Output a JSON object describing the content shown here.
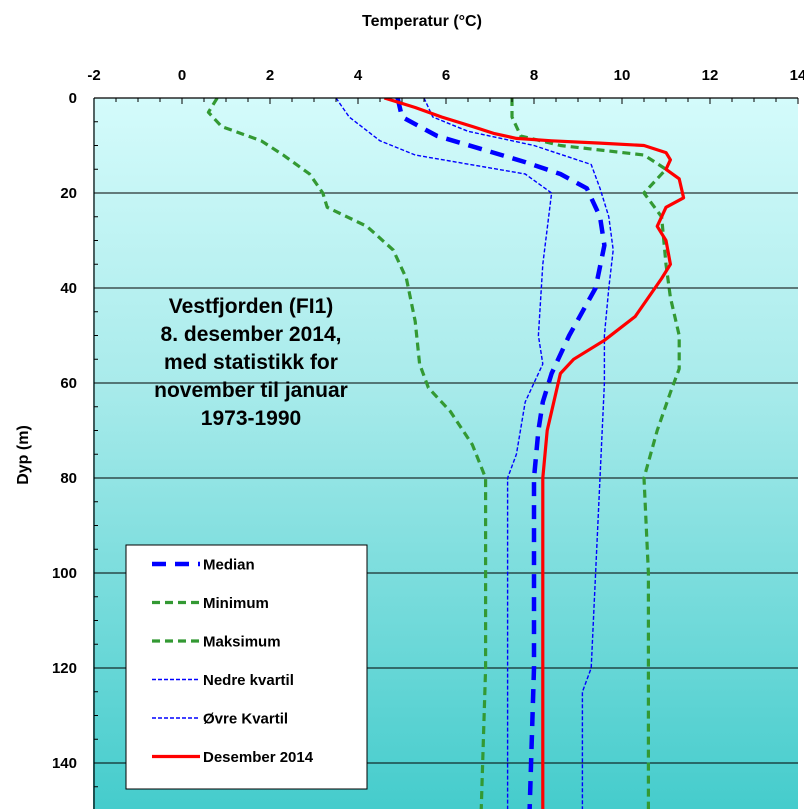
{
  "chart_data": {
    "type": "line",
    "xlabel": "Temperatur (°C)",
    "ylabel": "Dyp (m)",
    "xlim": [
      -2,
      14
    ],
    "ylim": [
      0,
      150
    ],
    "x_ticks": [
      -2,
      0,
      2,
      4,
      6,
      8,
      10,
      12,
      14
    ],
    "y_ticks": [
      0,
      20,
      40,
      60,
      80,
      100,
      120,
      140
    ],
    "y_axis_inverted": true,
    "x_axis_position": "top",
    "grid": "horizontal",
    "background": "gradient light cyan to teal",
    "legend_position": "bottom-left",
    "annotation": [
      "Vestfjorden (FI1)",
      "8. desember 2014,",
      "med statistikk for",
      "november til januar",
      "1973-1990"
    ],
    "series": [
      {
        "name": "Median",
        "color": "#0000FF",
        "style": "dashed-thick",
        "points": [
          [
            4.9,
            0
          ],
          [
            5.0,
            4
          ],
          [
            5.8,
            8
          ],
          [
            6.9,
            11
          ],
          [
            7.8,
            13.5
          ],
          [
            8.6,
            16
          ],
          [
            9.2,
            19
          ],
          [
            9.5,
            25
          ],
          [
            9.6,
            31
          ],
          [
            9.4,
            40
          ],
          [
            8.8,
            50
          ],
          [
            8.4,
            58
          ],
          [
            8.2,
            64
          ],
          [
            8.1,
            70
          ],
          [
            8.0,
            80
          ],
          [
            8.0,
            100
          ],
          [
            8.0,
            120
          ],
          [
            7.9,
            150
          ]
        ]
      },
      {
        "name": "Minimum",
        "color": "#339933",
        "style": "dashed",
        "points": [
          [
            0.8,
            0
          ],
          [
            0.6,
            3
          ],
          [
            0.9,
            6
          ],
          [
            1.8,
            9
          ],
          [
            2.3,
            12
          ],
          [
            2.9,
            16
          ],
          [
            3.2,
            20
          ],
          [
            3.3,
            23
          ],
          [
            4.2,
            27
          ],
          [
            4.8,
            32
          ],
          [
            5.1,
            38
          ],
          [
            5.3,
            47
          ],
          [
            5.4,
            56
          ],
          [
            5.6,
            61
          ],
          [
            6.1,
            66
          ],
          [
            6.6,
            73
          ],
          [
            6.9,
            80
          ],
          [
            6.9,
            100
          ],
          [
            6.9,
            120
          ],
          [
            6.8,
            150
          ]
        ]
      },
      {
        "name": "Maksimum",
        "color": "#339933",
        "style": "dashed",
        "points": [
          [
            7.5,
            0
          ],
          [
            7.5,
            4
          ],
          [
            7.7,
            8
          ],
          [
            8.6,
            10
          ],
          [
            10.5,
            12
          ],
          [
            11.0,
            15
          ],
          [
            10.5,
            20
          ],
          [
            10.9,
            25
          ],
          [
            11.0,
            35
          ],
          [
            11.1,
            42
          ],
          [
            11.3,
            50
          ],
          [
            11.3,
            57
          ],
          [
            11.1,
            62
          ],
          [
            10.8,
            70
          ],
          [
            10.5,
            80
          ],
          [
            10.6,
            100
          ],
          [
            10.6,
            120
          ],
          [
            10.6,
            150
          ]
        ]
      },
      {
        "name": "Nedre kvartil",
        "color": "#0000FF",
        "style": "dashed-thin",
        "points": [
          [
            3.5,
            0
          ],
          [
            3.8,
            4
          ],
          [
            4.5,
            9
          ],
          [
            5.3,
            12
          ],
          [
            7.8,
            16
          ],
          [
            8.4,
            20
          ],
          [
            8.2,
            35
          ],
          [
            8.1,
            50
          ],
          [
            8.2,
            56
          ],
          [
            7.8,
            64
          ],
          [
            7.6,
            75
          ],
          [
            7.4,
            80
          ],
          [
            7.4,
            100
          ],
          [
            7.4,
            120
          ],
          [
            7.4,
            150
          ]
        ]
      },
      {
        "name": "Øvre Kvartil",
        "color": "#0000FF",
        "style": "dashed-thin",
        "points": [
          [
            5.5,
            0
          ],
          [
            5.7,
            4
          ],
          [
            6.5,
            7
          ],
          [
            8.0,
            10
          ],
          [
            9.3,
            14
          ],
          [
            9.5,
            19
          ],
          [
            9.7,
            25
          ],
          [
            9.8,
            32
          ],
          [
            9.7,
            40
          ],
          [
            9.6,
            50
          ],
          [
            9.6,
            60
          ],
          [
            9.5,
            80
          ],
          [
            9.4,
            100
          ],
          [
            9.3,
            120
          ],
          [
            9.1,
            125
          ],
          [
            9.1,
            150
          ]
        ]
      },
      {
        "name": "Desember 2014",
        "color": "#FF0000",
        "style": "solid",
        "points": [
          [
            4.6,
            0
          ],
          [
            5.3,
            2
          ],
          [
            5.9,
            4
          ],
          [
            6.6,
            6
          ],
          [
            7.1,
            7.5
          ],
          [
            7.6,
            8.5
          ],
          [
            8.4,
            9
          ],
          [
            9.5,
            9.5
          ],
          [
            10.5,
            10
          ],
          [
            11.0,
            11.5
          ],
          [
            11.1,
            13
          ],
          [
            11.0,
            15
          ],
          [
            11.3,
            17
          ],
          [
            11.4,
            21
          ],
          [
            11.0,
            23
          ],
          [
            10.8,
            27
          ],
          [
            11.0,
            30
          ],
          [
            11.1,
            35
          ],
          [
            10.9,
            38
          ],
          [
            10.6,
            42
          ],
          [
            10.3,
            46
          ],
          [
            9.6,
            51
          ],
          [
            8.9,
            55
          ],
          [
            8.6,
            58
          ],
          [
            8.5,
            62
          ],
          [
            8.4,
            66
          ],
          [
            8.3,
            70
          ],
          [
            8.2,
            80
          ],
          [
            8.2,
            100
          ],
          [
            8.2,
            120
          ],
          [
            8.2,
            150
          ]
        ]
      }
    ]
  }
}
